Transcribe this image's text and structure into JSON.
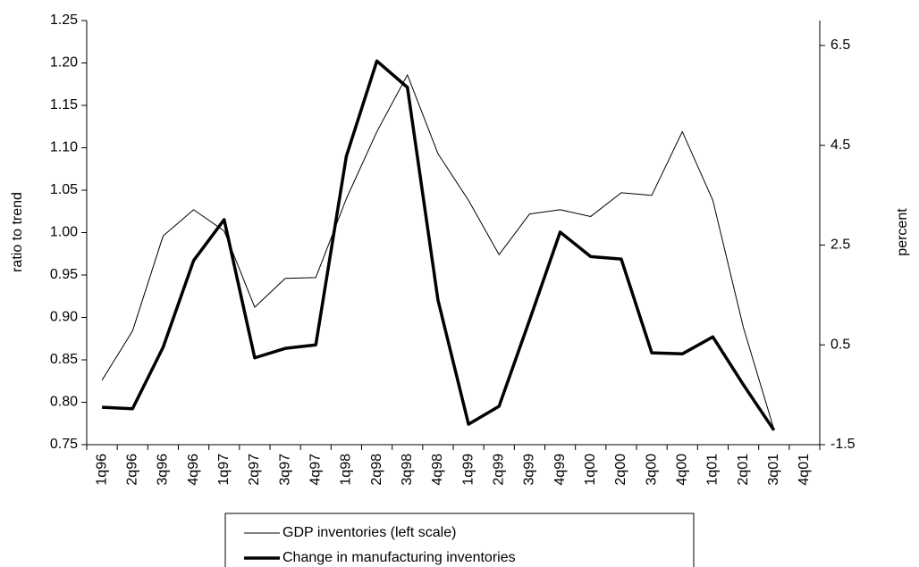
{
  "chart_data": {
    "type": "line",
    "categories": [
      "1q96",
      "2q96",
      "3q96",
      "4q96",
      "1q97",
      "2q97",
      "3q97",
      "4q97",
      "1q98",
      "2q98",
      "3q98",
      "4q98",
      "1q99",
      "2q99",
      "3q99",
      "4q99",
      "1q00",
      "2q00",
      "3q00",
      "4q00",
      "1q01",
      "2q01",
      "3q01",
      "4q01"
    ],
    "y_label": "ratio to trend",
    "y2_label": "percent",
    "ylim": [
      0.75,
      1.25
    ],
    "yticks": [
      0.75,
      {
        "value": 0.8,
        "label": "0.80"
      },
      0.85,
      {
        "value": 0.9,
        "label": "0.90"
      },
      0.95,
      {
        "value": 1.0,
        "label": "1.00"
      },
      1.05,
      {
        "value": 1.1,
        "label": "1.10"
      },
      1.15,
      {
        "value": 1.2,
        "label": "1.20"
      },
      1.25
    ],
    "y2lim": [
      -1.5,
      7
    ],
    "y2ticks": [
      -1.5,
      0.5,
      2.5,
      4.5,
      6.5
    ],
    "series": [
      {
        "name": "GDP inventories (left scale)",
        "color": "#000000",
        "width": 1,
        "values": [
          0.826,
          0.884,
          0.996,
          1.027,
          1.002,
          0.912,
          0.946,
          0.947,
          1.04,
          1.119,
          1.186,
          1.093,
          1.038,
          0.974,
          1.022,
          1.027,
          1.019,
          1.047,
          1.044,
          1.119,
          1.038,
          0.888,
          0.768,
          null
        ]
      },
      {
        "name": "Change in manufacturing inventories",
        "color": "#000000",
        "width": 3.5,
        "axis": "y2",
        "values": [
          -0.75,
          -0.78,
          0.45,
          2.19,
          3.01,
          0.24,
          0.43,
          0.5,
          4.28,
          6.19,
          5.66,
          1.4,
          -1.09,
          -0.73,
          1.0,
          2.76,
          2.27,
          2.22,
          0.34,
          0.32,
          0.66,
          -0.3,
          -1.21,
          null
        ]
      }
    ]
  }
}
